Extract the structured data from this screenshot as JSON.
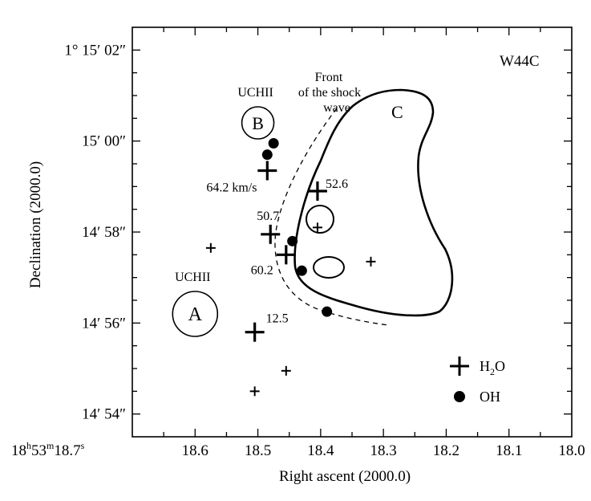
{
  "chart_data": {
    "type": "scatter",
    "title": "W44C",
    "xlabel": "Right ascent (2000.0)",
    "ylabel": "Declination (2000.0)",
    "xlim": [
      18.7,
      18.0
    ],
    "ylim_arcsec": [
      53.5,
      62.5
    ],
    "x_ticks": [
      {
        "value": 18.6,
        "label": "18.6"
      },
      {
        "value": 18.5,
        "label": "18.5"
      },
      {
        "value": 18.4,
        "label": "18.4"
      },
      {
        "value": 18.3,
        "label": "18.3"
      },
      {
        "value": 18.2,
        "label": "18.2"
      },
      {
        "value": 18.1,
        "label": "18.1"
      },
      {
        "value": 18.0,
        "label": "18.0"
      }
    ],
    "x_origin_label": {
      "h": "18",
      "m": "53",
      "s": "18.7"
    },
    "y_ticks": [
      {
        "value": 62,
        "label": "1° 15′ 02″"
      },
      {
        "value": 60,
        "label": "15′ 00″"
      },
      {
        "value": 58,
        "label": "14′ 58″"
      },
      {
        "value": 56,
        "label": "14′ 56″"
      },
      {
        "value": 54,
        "label": "14′ 54″"
      }
    ],
    "h2o_masers": [
      {
        "x": 18.485,
        "y": 59.35,
        "size": "large",
        "label": "64.2 km/s"
      },
      {
        "x": 18.405,
        "y": 58.9,
        "size": "large",
        "label": "52.6"
      },
      {
        "x": 18.48,
        "y": 57.95,
        "size": "large",
        "label": "50.7"
      },
      {
        "x": 18.455,
        "y": 57.5,
        "size": "large",
        "label": "60.2"
      },
      {
        "x": 18.505,
        "y": 55.8,
        "size": "large",
        "label": "12.5"
      },
      {
        "x": 18.575,
        "y": 57.65,
        "size": "small",
        "label": ""
      },
      {
        "x": 18.405,
        "y": 58.1,
        "size": "small",
        "label": ""
      },
      {
        "x": 18.32,
        "y": 57.35,
        "size": "small",
        "label": ""
      },
      {
        "x": 18.455,
        "y": 54.95,
        "size": "small",
        "label": ""
      },
      {
        "x": 18.505,
        "y": 54.5,
        "size": "small",
        "label": ""
      }
    ],
    "oh_masers": [
      {
        "x": 18.475,
        "y": 59.95
      },
      {
        "x": 18.485,
        "y": 59.7
      },
      {
        "x": 18.445,
        "y": 57.8
      },
      {
        "x": 18.43,
        "y": 57.15
      },
      {
        "x": 18.39,
        "y": 56.25
      }
    ],
    "uchii_regions": [
      {
        "name": "A",
        "label": "UCHII",
        "x": 18.6,
        "y": 56.2
      },
      {
        "name": "B",
        "label": "UCHII",
        "x": 18.5,
        "y": 60.4
      }
    ],
    "region_C_label": "C",
    "shock_front_label": [
      "Front",
      "of the shock",
      "wave"
    ],
    "legend": [
      {
        "symbol": "cross",
        "label": "H2O"
      },
      {
        "symbol": "dot",
        "label": "OH"
      }
    ],
    "legend_position": "bottom-right",
    "grid": false
  }
}
